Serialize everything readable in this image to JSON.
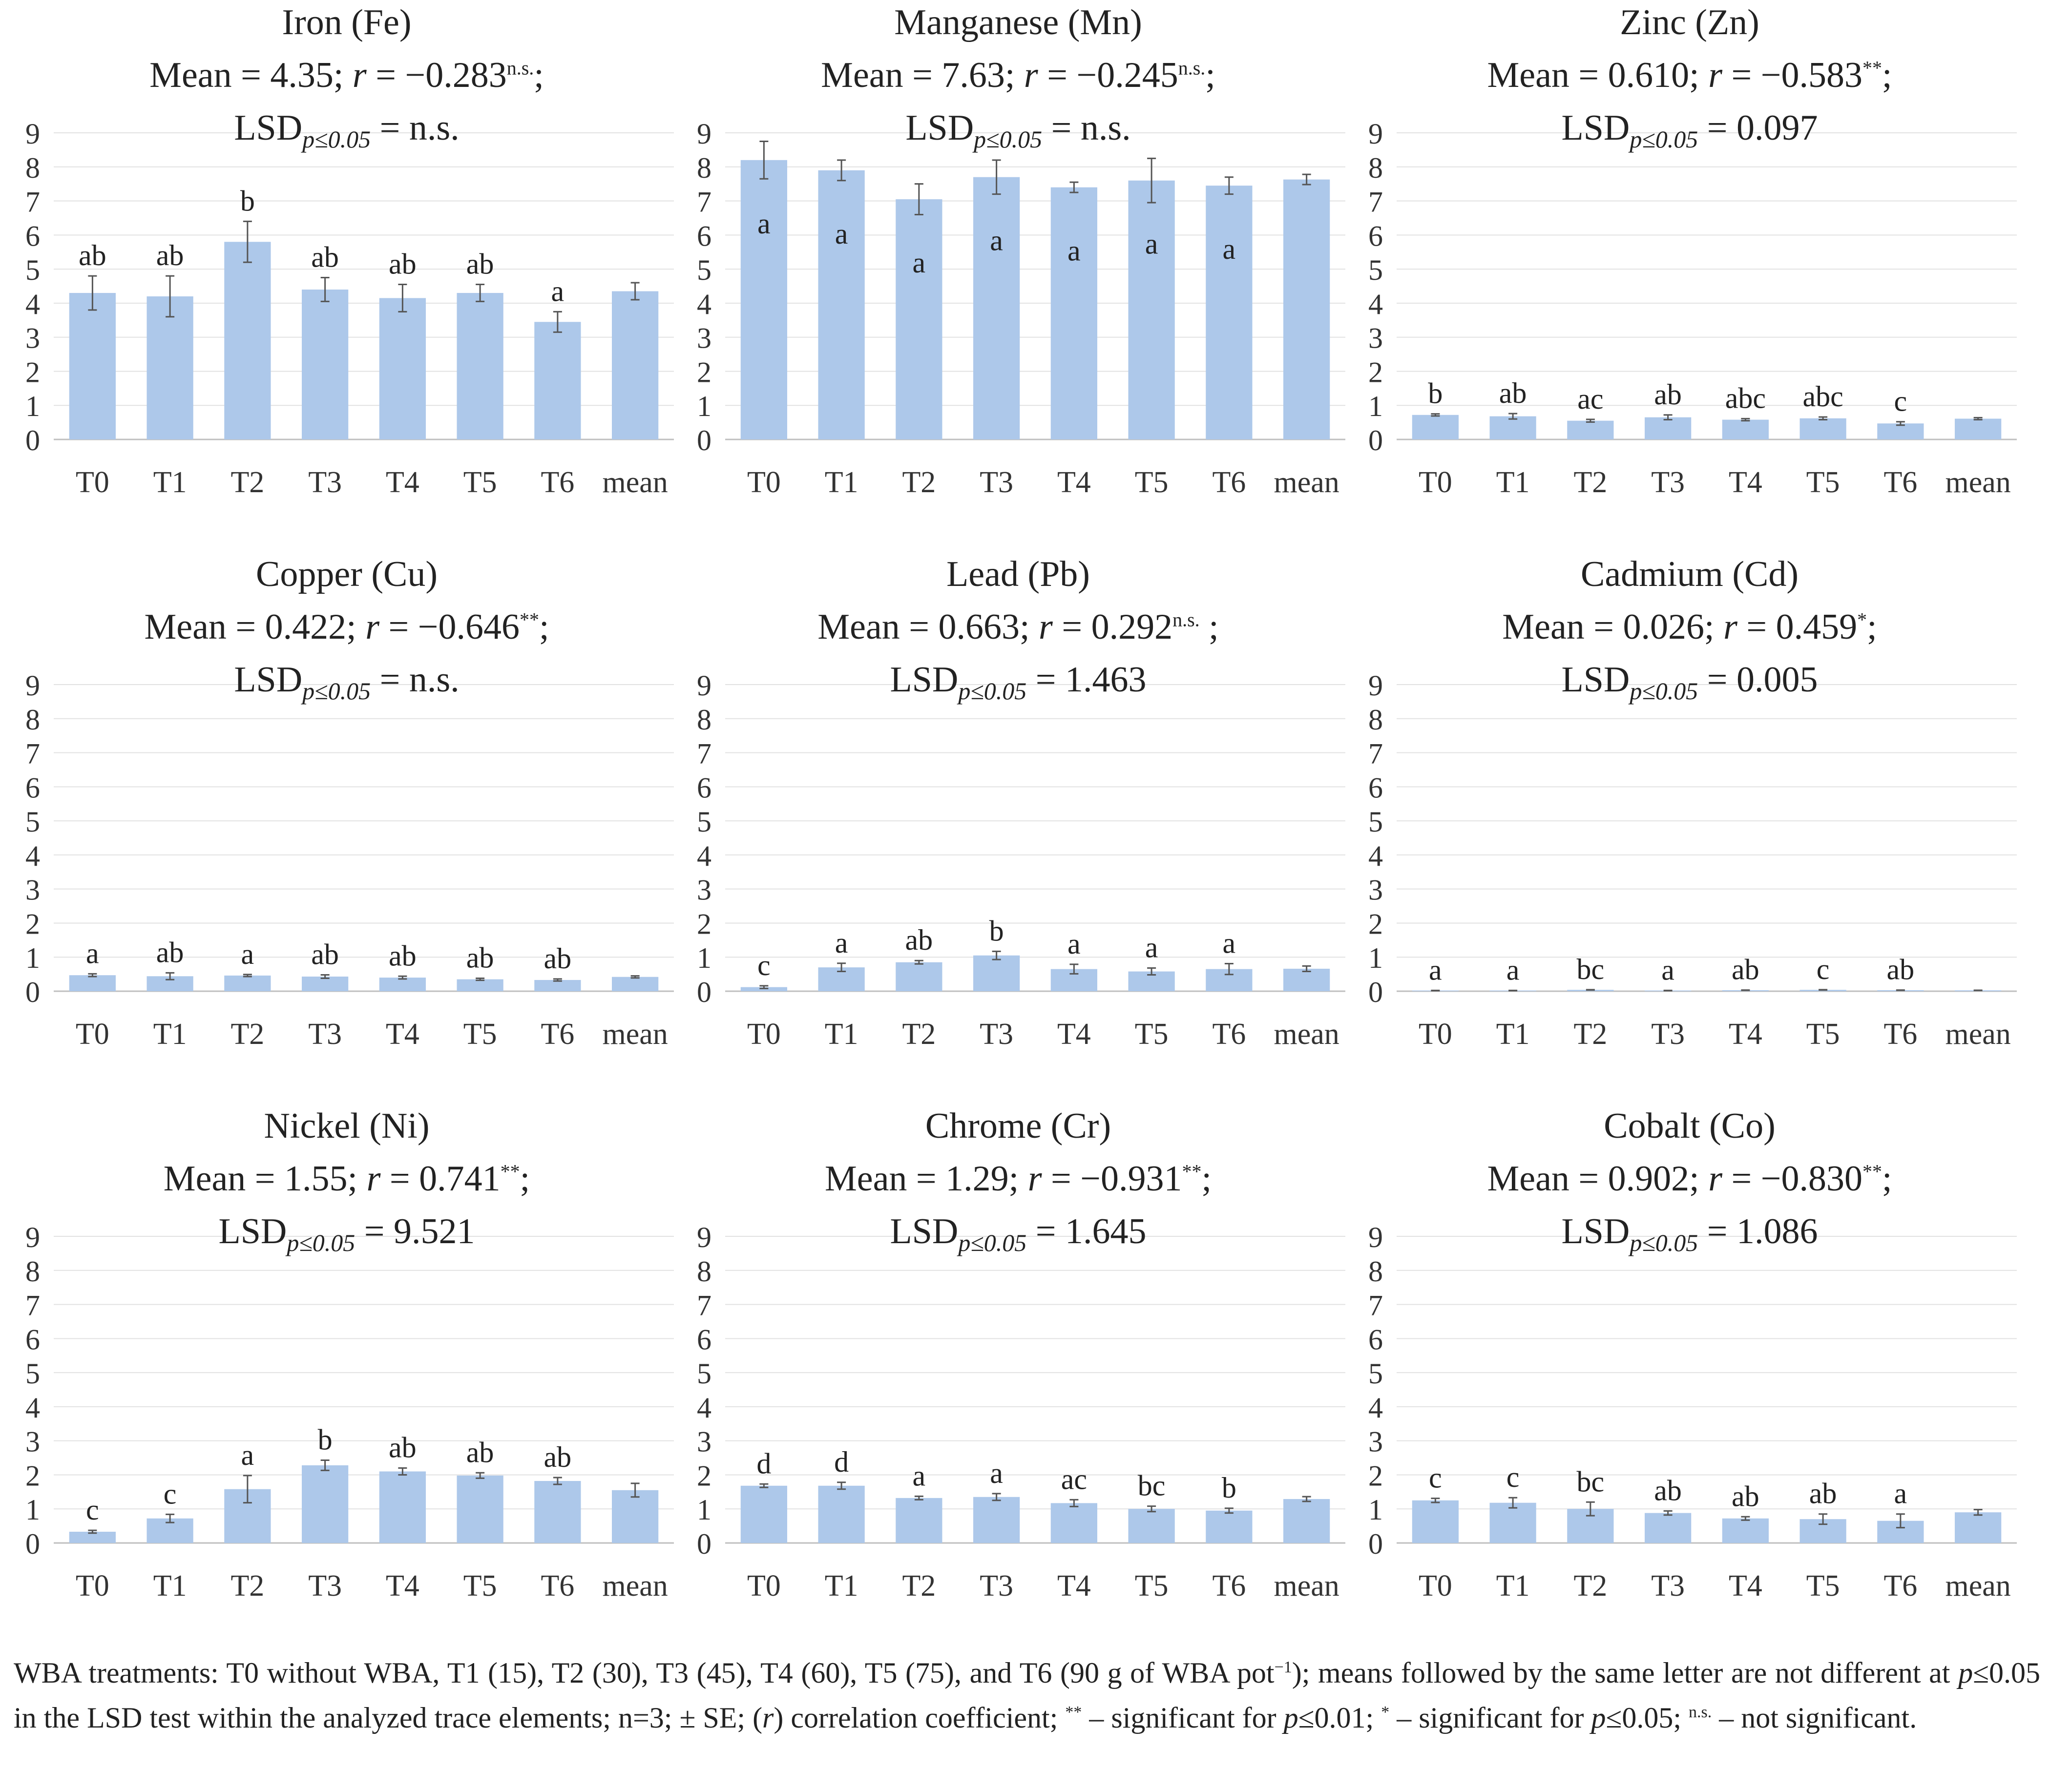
{
  "chart_data": [
    {
      "type": "bar",
      "element": "Iron (Fe)",
      "mean_label": "Mean = 4.35;",
      "r_label": "r",
      "r_value": " = −0.283",
      "r_sig": "n.s.",
      "r_suffix": ";",
      "lsd_label": "LSD",
      "lsd_sub": "p≤0.05",
      "lsd_value": " = n.s.",
      "categories": [
        "T0",
        "T1",
        "T2",
        "T3",
        "T4",
        "T5",
        "T6",
        "mean"
      ],
      "values": [
        4.3,
        4.2,
        5.8,
        4.4,
        4.15,
        4.3,
        3.45,
        4.35
      ],
      "errors": [
        0.5,
        0.6,
        0.6,
        0.35,
        0.4,
        0.25,
        0.3,
        0.25
      ],
      "letters": [
        "ab",
        "ab",
        "b",
        "ab",
        "ab",
        "ab",
        "a",
        ""
      ],
      "ylim": [
        0,
        9
      ],
      "yticks": [
        0,
        1,
        2,
        3,
        4,
        5,
        6,
        7,
        8,
        9
      ],
      "color": "#adc8ea"
    },
    {
      "type": "bar",
      "element": "Manganese (Mn)",
      "mean_label": "Mean = 7.63;",
      "r_label": "r",
      "r_value": " = −0.245",
      "r_sig": "n.s.",
      "r_suffix": ";",
      "lsd_label": "LSD",
      "lsd_sub": "p≤0.05",
      "lsd_value": " = n.s.",
      "categories": [
        "T0",
        "T1",
        "T2",
        "T3",
        "T4",
        "T5",
        "T6",
        "mean"
      ],
      "values": [
        8.2,
        7.9,
        7.05,
        7.7,
        7.4,
        7.6,
        7.45,
        7.63
      ],
      "errors": [
        0.55,
        0.3,
        0.45,
        0.5,
        0.15,
        0.65,
        0.25,
        0.15
      ],
      "letters": [
        "a",
        "a",
        "a",
        "a",
        "a",
        "a",
        "a",
        ""
      ],
      "ylim": [
        0,
        9
      ],
      "yticks": [
        0,
        1,
        2,
        3,
        4,
        5,
        6,
        7,
        8,
        9
      ],
      "color": "#adc8ea"
    },
    {
      "type": "bar",
      "element": "Zinc (Zn)",
      "mean_label": "Mean = 0.610;",
      "r_label": "r",
      "r_value": " = −0.583",
      "r_sig": "**",
      "r_suffix": ";",
      "lsd_label": "LSD",
      "lsd_sub": "p≤0.05",
      "lsd_value": " = 0.097",
      "categories": [
        "T0",
        "T1",
        "T2",
        "T3",
        "T4",
        "T5",
        "T6",
        "mean"
      ],
      "values": [
        0.72,
        0.68,
        0.55,
        0.65,
        0.58,
        0.62,
        0.47,
        0.61
      ],
      "errors": [
        0.03,
        0.08,
        0.04,
        0.07,
        0.03,
        0.04,
        0.05,
        0.03
      ],
      "letters": [
        "b",
        "ab",
        "ac",
        "ab",
        "abc",
        "abc",
        "c",
        ""
      ],
      "ylim": [
        0,
        9
      ],
      "yticks": [
        0,
        1,
        2,
        3,
        4,
        5,
        6,
        7,
        8,
        9
      ],
      "color": "#adc8ea"
    },
    {
      "type": "bar",
      "element": "Copper (Cu)",
      "mean_label": "Mean = 0.422;",
      "r_label": "r",
      "r_value": " = −0.646",
      "r_sig": "**",
      "r_suffix": ";",
      "lsd_label": "LSD",
      "lsd_sub": "p≤0.05",
      "lsd_value": " = n.s.",
      "categories": [
        "T0",
        "T1",
        "T2",
        "T3",
        "T4",
        "T5",
        "T6",
        "mean"
      ],
      "values": [
        0.47,
        0.44,
        0.46,
        0.43,
        0.4,
        0.35,
        0.33,
        0.42
      ],
      "errors": [
        0.04,
        0.1,
        0.03,
        0.05,
        0.04,
        0.03,
        0.03,
        0.03
      ],
      "letters": [
        "a",
        "ab",
        "a",
        "ab",
        "ab",
        "ab",
        "ab",
        ""
      ],
      "ylim": [
        0,
        9
      ],
      "yticks": [
        0,
        1,
        2,
        3,
        4,
        5,
        6,
        7,
        8,
        9
      ],
      "color": "#adc8ea"
    },
    {
      "type": "bar",
      "element": "Lead (Pb)",
      "mean_label": "Mean = 0.663;",
      "r_label": "r",
      "r_value": " = 0.292",
      "r_sig": "n.s.",
      "r_suffix": " ;",
      "lsd_label": "LSD",
      "lsd_sub": "p≤0.05",
      "lsd_value": " = 1.463",
      "categories": [
        "T0",
        "T1",
        "T2",
        "T3",
        "T4",
        "T5",
        "T6",
        "mean"
      ],
      "values": [
        0.12,
        0.7,
        0.85,
        1.05,
        0.65,
        0.58,
        0.65,
        0.66
      ],
      "errors": [
        0.04,
        0.12,
        0.05,
        0.12,
        0.14,
        0.1,
        0.16,
        0.08
      ],
      "letters": [
        "c",
        "a",
        "ab",
        "b",
        "a",
        "a",
        "a",
        ""
      ],
      "ylim": [
        0,
        9
      ],
      "yticks": [
        0,
        1,
        2,
        3,
        4,
        5,
        6,
        7,
        8,
        9
      ],
      "color": "#adc8ea"
    },
    {
      "type": "bar",
      "element": "Cadmium (Cd)",
      "mean_label": "Mean = 0.026;",
      "r_label": "r",
      "r_value": " = 0.459",
      "r_sig": "*",
      "r_suffix": ";",
      "lsd_label": "LSD",
      "lsd_sub": "p≤0.05",
      "lsd_value": " = 0.005",
      "categories": [
        "T0",
        "T1",
        "T2",
        "T3",
        "T4",
        "T5",
        "T6",
        "mean"
      ],
      "values": [
        0.02,
        0.02,
        0.04,
        0.02,
        0.03,
        0.04,
        0.03,
        0.026
      ],
      "errors": [
        0.003,
        0.003,
        0.005,
        0.003,
        0.004,
        0.005,
        0.004,
        0.003
      ],
      "letters": [
        "a",
        "a",
        "bc",
        "a",
        "ab",
        "c",
        "ab",
        ""
      ],
      "ylim": [
        0,
        9
      ],
      "yticks": [
        0,
        1,
        2,
        3,
        4,
        5,
        6,
        7,
        8,
        9
      ],
      "color": "#adc8ea"
    },
    {
      "type": "bar",
      "element": "Nickel (Ni)",
      "mean_label": "Mean = 1.55;",
      "r_label": "r",
      "r_value": " = 0.741",
      "r_sig": "**",
      "r_suffix": ";",
      "lsd_label": "LSD",
      "lsd_sub": "p≤0.05",
      "lsd_value": " = 9.521",
      "categories": [
        "T0",
        "T1",
        "T2",
        "T3",
        "T4",
        "T5",
        "T6",
        "mean"
      ],
      "values": [
        0.33,
        0.72,
        1.58,
        2.28,
        2.1,
        1.98,
        1.82,
        1.55
      ],
      "errors": [
        0.04,
        0.12,
        0.4,
        0.15,
        0.1,
        0.08,
        0.1,
        0.2
      ],
      "letters": [
        "c",
        "c",
        "a",
        "b",
        "ab",
        "ab",
        "ab",
        ""
      ],
      "ylim": [
        0,
        9
      ],
      "yticks": [
        0,
        1,
        2,
        3,
        4,
        5,
        6,
        7,
        8,
        9
      ],
      "color": "#adc8ea"
    },
    {
      "type": "bar",
      "element": "Chrome (Cr)",
      "mean_label": "Mean = 1.29;",
      "r_label": "r",
      "r_value": " = −0.931",
      "r_sig": "**",
      "r_suffix": ";",
      "lsd_label": "LSD",
      "lsd_sub": "p≤0.05",
      "lsd_value": " = 1.645",
      "categories": [
        "T0",
        "T1",
        "T2",
        "T3",
        "T4",
        "T5",
        "T6",
        "mean"
      ],
      "values": [
        1.68,
        1.68,
        1.32,
        1.35,
        1.17,
        1.0,
        0.95,
        1.29
      ],
      "errors": [
        0.05,
        0.1,
        0.05,
        0.1,
        0.1,
        0.08,
        0.07,
        0.07
      ],
      "letters": [
        "d",
        "d",
        "a",
        "a",
        "ac",
        "bc",
        "b",
        ""
      ],
      "ylim": [
        0,
        9
      ],
      "yticks": [
        0,
        1,
        2,
        3,
        4,
        5,
        6,
        7,
        8,
        9
      ],
      "color": "#adc8ea"
    },
    {
      "type": "bar",
      "element": "Cobalt (Co)",
      "mean_label": "Mean = 0.902;",
      "r_label": "r",
      "r_value": " = −0.830",
      "r_sig": "**",
      "r_suffix": ";",
      "lsd_label": "LSD",
      "lsd_sub": "p≤0.05",
      "lsd_value": " = 1.086",
      "categories": [
        "T0",
        "T1",
        "T2",
        "T3",
        "T4",
        "T5",
        "T6",
        "mean"
      ],
      "values": [
        1.25,
        1.18,
        1.0,
        0.88,
        0.72,
        0.7,
        0.65,
        0.9
      ],
      "errors": [
        0.06,
        0.15,
        0.2,
        0.06,
        0.05,
        0.15,
        0.2,
        0.08
      ],
      "letters": [
        "c",
        "c",
        "bc",
        "ab",
        "ab",
        "ab",
        "a",
        ""
      ],
      "ylim": [
        0,
        9
      ],
      "yticks": [
        0,
        1,
        2,
        3,
        4,
        5,
        6,
        7,
        8,
        9
      ],
      "color": "#adc8ea"
    }
  ],
  "footnote": {
    "part1": "WBA treatments: T0 without WBA, T1 (15), T2 (30), T3 (45), T4 (60), T5 (75), and T6 (90 g of WBA pot",
    "pot_exp": "−1",
    "part2": "); means followed by the same letter are not different at ",
    "p1": "p",
    "part3": "≤0.05 in the LSD test within the analyzed trace elements; n=3; ± SE; (",
    "r": "r",
    "part4": ") correlation coefficient; ",
    "sig2": "**",
    "part5": " – significant for ",
    "p2": "p",
    "part6": "≤0.01; ",
    "sig1": "*",
    "part7": " – significant for ",
    "p3": "p",
    "part8": "≤0.05; ",
    "ns": "n.s.",
    "part9": " – not significant."
  }
}
